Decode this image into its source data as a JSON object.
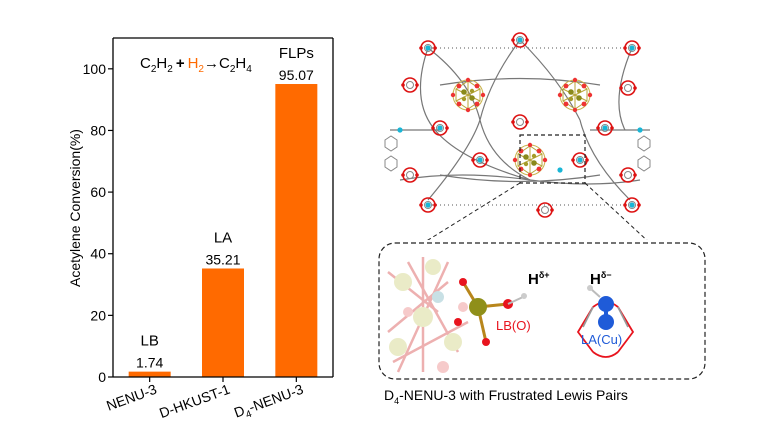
{
  "chart_data": {
    "type": "bar",
    "categories": [
      "NENU-3",
      "D-HKUST-1",
      "D4-NENU-3"
    ],
    "category_labels": [
      {
        "main": "NENU-3",
        "sub": "",
        "rest": ""
      },
      {
        "main": "D-HKUST-1",
        "sub": "",
        "rest": ""
      },
      {
        "main": "D",
        "sub": "4",
        "rest": "-NENU-3"
      }
    ],
    "values": [
      1.74,
      35.21,
      95.07
    ],
    "value_labels": [
      "1.74",
      "35.21",
      "95.07"
    ],
    "bar_tags": [
      "LB",
      "LA",
      "FLPs"
    ],
    "ylabel": "Acetylene Conversion(%)",
    "ylim": [
      0,
      110
    ],
    "yticks": [
      0,
      20,
      40,
      60,
      80,
      100
    ],
    "bar_color": "#ff6a00",
    "reaction": {
      "reactant1": {
        "text": "C",
        "sub": "2",
        "text2": "H",
        "sub2": "2"
      },
      "plus": "+",
      "reactant2": {
        "text": "H",
        "sub": "2",
        "color": "#ff6a00"
      },
      "arrow": "→",
      "product": {
        "text": "C",
        "sub": "2",
        "text2": "H",
        "sub2": "4"
      }
    }
  },
  "inset": {
    "h_plus": {
      "main": "H",
      "sup": "δ+"
    },
    "h_minus": {
      "main": "H",
      "sup": "δ−"
    },
    "lb_label": "LB(O)",
    "la_label": "LA(Cu)",
    "lb_color": "#e8141e",
    "la_color": "#1f5bd8"
  },
  "caption": {
    "prefix": "D",
    "sub": "4",
    "rest": "-NENU-3 with Frustrated Lewis Pairs"
  }
}
